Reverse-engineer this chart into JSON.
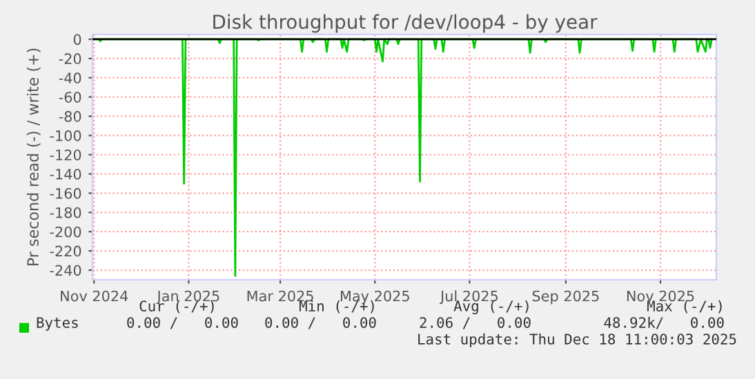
{
  "chart_data": {
    "type": "line",
    "title": "Disk throughput for /dev/loop4 - by year",
    "ylabel": "Pr second read (-) / write (+)",
    "x": [
      "2024-11-14",
      "2024-11-18",
      "2024-11-19",
      "2024-11-20",
      "2025-01-11",
      "2025-01-12",
      "2025-01-13",
      "2025-02-03",
      "2025-02-04",
      "2025-02-05",
      "2025-02-13",
      "2025-02-14",
      "2025-02-15",
      "2025-02-28",
      "2025-03-01",
      "2025-03-02",
      "2025-03-28",
      "2025-03-29",
      "2025-03-30",
      "2025-04-04",
      "2025-04-05",
      "2025-04-06",
      "2025-04-13",
      "2025-04-14",
      "2025-04-15",
      "2025-04-23",
      "2025-04-24",
      "2025-04-25",
      "2025-04-27",
      "2025-04-28",
      "2025-05-07",
      "2025-05-08",
      "2025-05-09",
      "2025-05-15",
      "2025-05-16",
      "2025-05-17",
      "2025-05-20",
      "2025-05-21",
      "2025-05-23",
      "2025-05-24",
      "2025-05-29",
      "2025-05-30",
      "2025-05-31",
      "2025-06-12",
      "2025-06-13",
      "2025-06-14",
      "2025-06-22",
      "2025-06-23",
      "2025-06-24",
      "2025-06-27",
      "2025-06-28",
      "2025-06-29",
      "2025-07-17",
      "2025-07-18",
      "2025-07-19",
      "2025-08-22",
      "2025-08-23",
      "2025-08-24",
      "2025-09-01",
      "2025-09-02",
      "2025-09-03",
      "2025-09-23",
      "2025-09-24",
      "2025-09-25",
      "2025-10-27",
      "2025-10-28",
      "2025-10-29",
      "2025-11-10",
      "2025-11-11",
      "2025-11-12",
      "2025-11-23",
      "2025-11-24",
      "2025-11-25",
      "2025-12-08",
      "2025-12-09",
      "2025-12-11",
      "2025-12-14",
      "2025-12-15",
      "2025-12-16",
      "2025-12-17",
      "2025-12-18"
    ],
    "series": [
      {
        "name": "Bytes",
        "color": "#00cc00",
        "values": [
          0,
          0,
          -2,
          0,
          0,
          -150,
          0,
          0,
          -4,
          0,
          0,
          -246,
          0,
          0,
          -1,
          0,
          0,
          -13,
          0,
          0,
          -3,
          0,
          0,
          -13,
          0,
          0,
          -9,
          0,
          -13,
          0,
          0,
          -1,
          0,
          0,
          -13,
          0,
          -23,
          0,
          -5,
          0,
          0,
          -5,
          0,
          0,
          -148,
          0,
          0,
          -10,
          0,
          0,
          -13,
          0,
          0,
          -9,
          0,
          0,
          -14,
          0,
          0,
          -3,
          0,
          0,
          -14,
          0,
          0,
          -12,
          0,
          0,
          -13,
          0,
          0,
          -13,
          0,
          0,
          -13,
          0,
          -13,
          0,
          0,
          -9,
          0
        ]
      }
    ],
    "xlim": [
      "2024-11-14",
      "2025-12-21"
    ],
    "xticks": [
      {
        "value": "2024-11-15",
        "label": "Nov 2024"
      },
      {
        "value": "2025-01-15",
        "label": "Jan 2025"
      },
      {
        "value": "2025-03-15",
        "label": "Mar 2025"
      },
      {
        "value": "2025-05-15",
        "label": "May 2025"
      },
      {
        "value": "2025-07-15",
        "label": "Jul 2025"
      },
      {
        "value": "2025-09-15",
        "label": "Sep 2025"
      },
      {
        "value": "2025-11-15",
        "label": "Nov 2025"
      }
    ],
    "ylim": [
      -250,
      5
    ],
    "yticks": [
      -240,
      -220,
      -200,
      -180,
      -160,
      -140,
      -120,
      -100,
      -80,
      -60,
      -40,
      -20,
      0
    ],
    "grid": true,
    "legend": "bottom left",
    "marker": "none",
    "line_style": "solid",
    "ref_lines": [
      {
        "axis": "y",
        "value": 0,
        "color": "#000000",
        "line_style": "solid"
      }
    ],
    "annotations": [
      "Cur (-/+)",
      "Min (-/+)",
      "Avg (-/+)",
      "Max (-/+)",
      "0.00 /   0.00",
      "0.00 /   0.00",
      "2.06 /   0.00",
      "48.92k/   0.00",
      "Last update: Thu Dec 18 11:00:03 2025"
    ]
  }
}
